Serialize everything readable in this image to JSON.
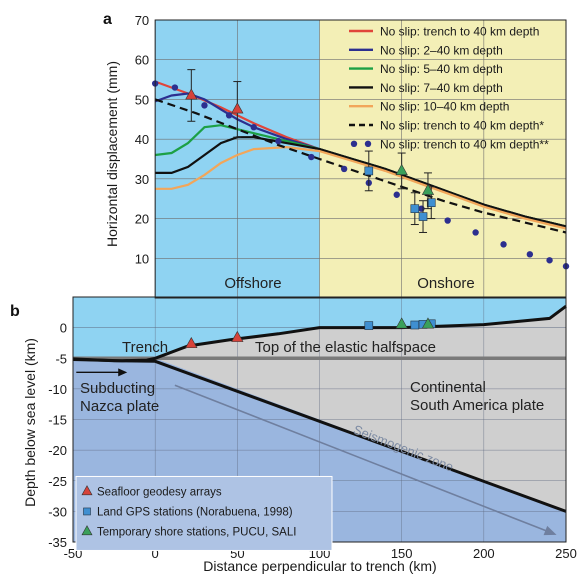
{
  "chart_data": [
    {
      "panel": "a",
      "type": "line",
      "ylabel": "Horizontal displacement (mm)",
      "ylim": [
        0,
        70
      ],
      "xlim": [
        0,
        250
      ],
      "yticks": [
        10,
        20,
        30,
        40,
        50,
        60,
        70
      ],
      "regions": [
        {
          "label": "Offshore",
          "x": [
            0,
            100
          ],
          "color": "#8fd3f2"
        },
        {
          "label": "Onshore",
          "x": [
            100,
            250
          ],
          "color": "#f3efb6"
        }
      ],
      "series": [
        {
          "name": "No slip: trench to 40 km depth",
          "color": "#e0453a",
          "style": "solid",
          "x": [
            0,
            20,
            40,
            60,
            80,
            100,
            120,
            140,
            160,
            180,
            200,
            225,
            250
          ],
          "y": [
            54.5,
            51.5,
            48,
            44,
            40.5,
            37.5,
            35,
            32.5,
            29.5,
            26.5,
            23.5,
            20.5,
            18
          ]
        },
        {
          "name": "No slip: 2–40 km depth",
          "color": "#2c2f8f",
          "style": "solid",
          "x": [
            0,
            10,
            20,
            30,
            40,
            50,
            60,
            80,
            100,
            120,
            140,
            160,
            180,
            200,
            225,
            250
          ],
          "y": [
            49.5,
            51,
            51.5,
            50,
            47.5,
            45,
            43,
            40,
            37.5,
            35,
            32.5,
            29.5,
            26.5,
            23.5,
            20.5,
            18
          ]
        },
        {
          "name": "No slip: 5–40 km depth",
          "color": "#1ca045",
          "style": "solid",
          "x": [
            0,
            10,
            20,
            30,
            40,
            50,
            60,
            80,
            100,
            120,
            140,
            160,
            180,
            200,
            225,
            250
          ],
          "y": [
            36,
            36.5,
            39,
            43,
            43.5,
            42.5,
            41.5,
            39.5,
            37.5,
            35,
            32.5,
            29.5,
            26.5,
            23.5,
            20.5,
            18
          ]
        },
        {
          "name": "No slip: 7–40 km depth",
          "color": "#111111",
          "style": "solid",
          "x": [
            0,
            10,
            20,
            30,
            40,
            50,
            60,
            80,
            100,
            120,
            140,
            160,
            180,
            200,
            225,
            250
          ],
          "y": [
            31.5,
            31.5,
            33,
            36,
            39,
            40.5,
            40.5,
            39,
            37.5,
            35,
            32.5,
            29.5,
            26.5,
            23.5,
            20.5,
            18
          ]
        },
        {
          "name": "No slip: 10–40 km depth",
          "color": "#f2a65a",
          "style": "solid",
          "x": [
            0,
            10,
            20,
            30,
            40,
            50,
            60,
            80,
            100,
            120,
            140,
            160,
            180,
            200,
            225,
            250
          ],
          "y": [
            27.5,
            27.5,
            28.5,
            31,
            34,
            36,
            37.5,
            38,
            37,
            34.5,
            32,
            29,
            26,
            23,
            20,
            17.5
          ]
        },
        {
          "name": "No slip: trench to 40 km depth*",
          "color": "#111111",
          "style": "dashed",
          "x": [
            0,
            25,
            50,
            75,
            100,
            125,
            150,
            175,
            200,
            225,
            250
          ],
          "y": [
            50,
            46.5,
            42.5,
            38.5,
            35,
            31.5,
            28,
            24.5,
            21.5,
            19,
            16.5
          ]
        },
        {
          "name": "No slip: trench to 40 km depth**",
          "color": "#2c2f8f",
          "style": "dots",
          "x": [
            0,
            12,
            30,
            45,
            60,
            75,
            95,
            115,
            130,
            147,
            162,
            178,
            195,
            212,
            228,
            240,
            250
          ],
          "y": [
            54,
            53,
            48.5,
            46,
            43,
            39.5,
            35.5,
            32.5,
            29,
            26,
            22.5,
            19.5,
            16.5,
            13.5,
            11,
            9.5,
            8
          ]
        }
      ],
      "observations": [
        {
          "type": "seafloor",
          "x": [
            22,
            50
          ],
          "y": [
            51,
            47.5
          ],
          "err": [
            6.5,
            7
          ],
          "color": "#d6423a"
        },
        {
          "type": "land-gps",
          "x": [
            130,
            158,
            163,
            168
          ],
          "y": [
            32,
            22.5,
            20.5,
            24
          ],
          "err": [
            5,
            4,
            4,
            4
          ],
          "color": "#3f8fd1"
        },
        {
          "type": "temporary-shore",
          "x": [
            150,
            166
          ],
          "y": [
            32,
            27
          ],
          "err": [
            4.5,
            4.5
          ],
          "color": "#3aa05a"
        }
      ]
    },
    {
      "panel": "b",
      "type": "line",
      "ylabel": "Depth below sea level (km)",
      "xlabel": "Distance perpendicular to trench (km)",
      "ylim": [
        -35,
        5
      ],
      "xlim": [
        -50,
        250
      ],
      "xticks": [
        -50,
        0,
        50,
        100,
        150,
        200,
        250
      ],
      "yticks": [
        0,
        -5,
        -10,
        -15,
        -20,
        -25,
        -30,
        -35
      ],
      "labels": {
        "trench": "Trench",
        "halfspace": "Top of the elastic halfspace",
        "subducting": [
          "Subducting",
          "Nazca plate"
        ],
        "continental": [
          "Continental",
          "South America plate"
        ],
        "seismogenic": "Seismogenic zone"
      },
      "seafloor": {
        "x": [
          -50,
          -20,
          -5,
          0,
          20,
          45,
          75,
          100,
          150,
          200,
          240,
          250
        ],
        "y": [
          -5.2,
          -5.4,
          -5.3,
          -5,
          -3,
          -2,
          -1,
          0,
          0,
          0.5,
          1.5,
          3.5
        ]
      },
      "slab_top": {
        "x": [
          -50,
          -25,
          0,
          250
        ],
        "y": [
          -5.1,
          -5.4,
          -5.5,
          -30
        ]
      },
      "halfspace_depth": -5,
      "markers": [
        {
          "type": "seafloor",
          "x": [
            22,
            50
          ],
          "y": [
            -3,
            -2
          ],
          "color": "#d6423a"
        },
        {
          "type": "land-gps",
          "x": [
            130,
            158,
            163,
            168
          ],
          "y": [
            0,
            0.1,
            0.2,
            0.3
          ],
          "color": "#3f8fd1"
        },
        {
          "type": "temporary-shore",
          "x": [
            150,
            166
          ],
          "y": [
            0.2,
            0.2
          ],
          "color": "#3aa05a"
        }
      ],
      "legend": [
        "Seafloor geodesy arrays",
        "Land GPS stations (Norabuena, 1998)",
        "Temporary shore stations, PUCU, SALI"
      ]
    }
  ],
  "panel_letters": {
    "a": "a",
    "b": "b"
  },
  "colors": {
    "offshore": "#8fd3f2",
    "onshore": "#f3efb6",
    "ocean_plate": "#9ab6df",
    "continent": "#cfcfcf"
  }
}
